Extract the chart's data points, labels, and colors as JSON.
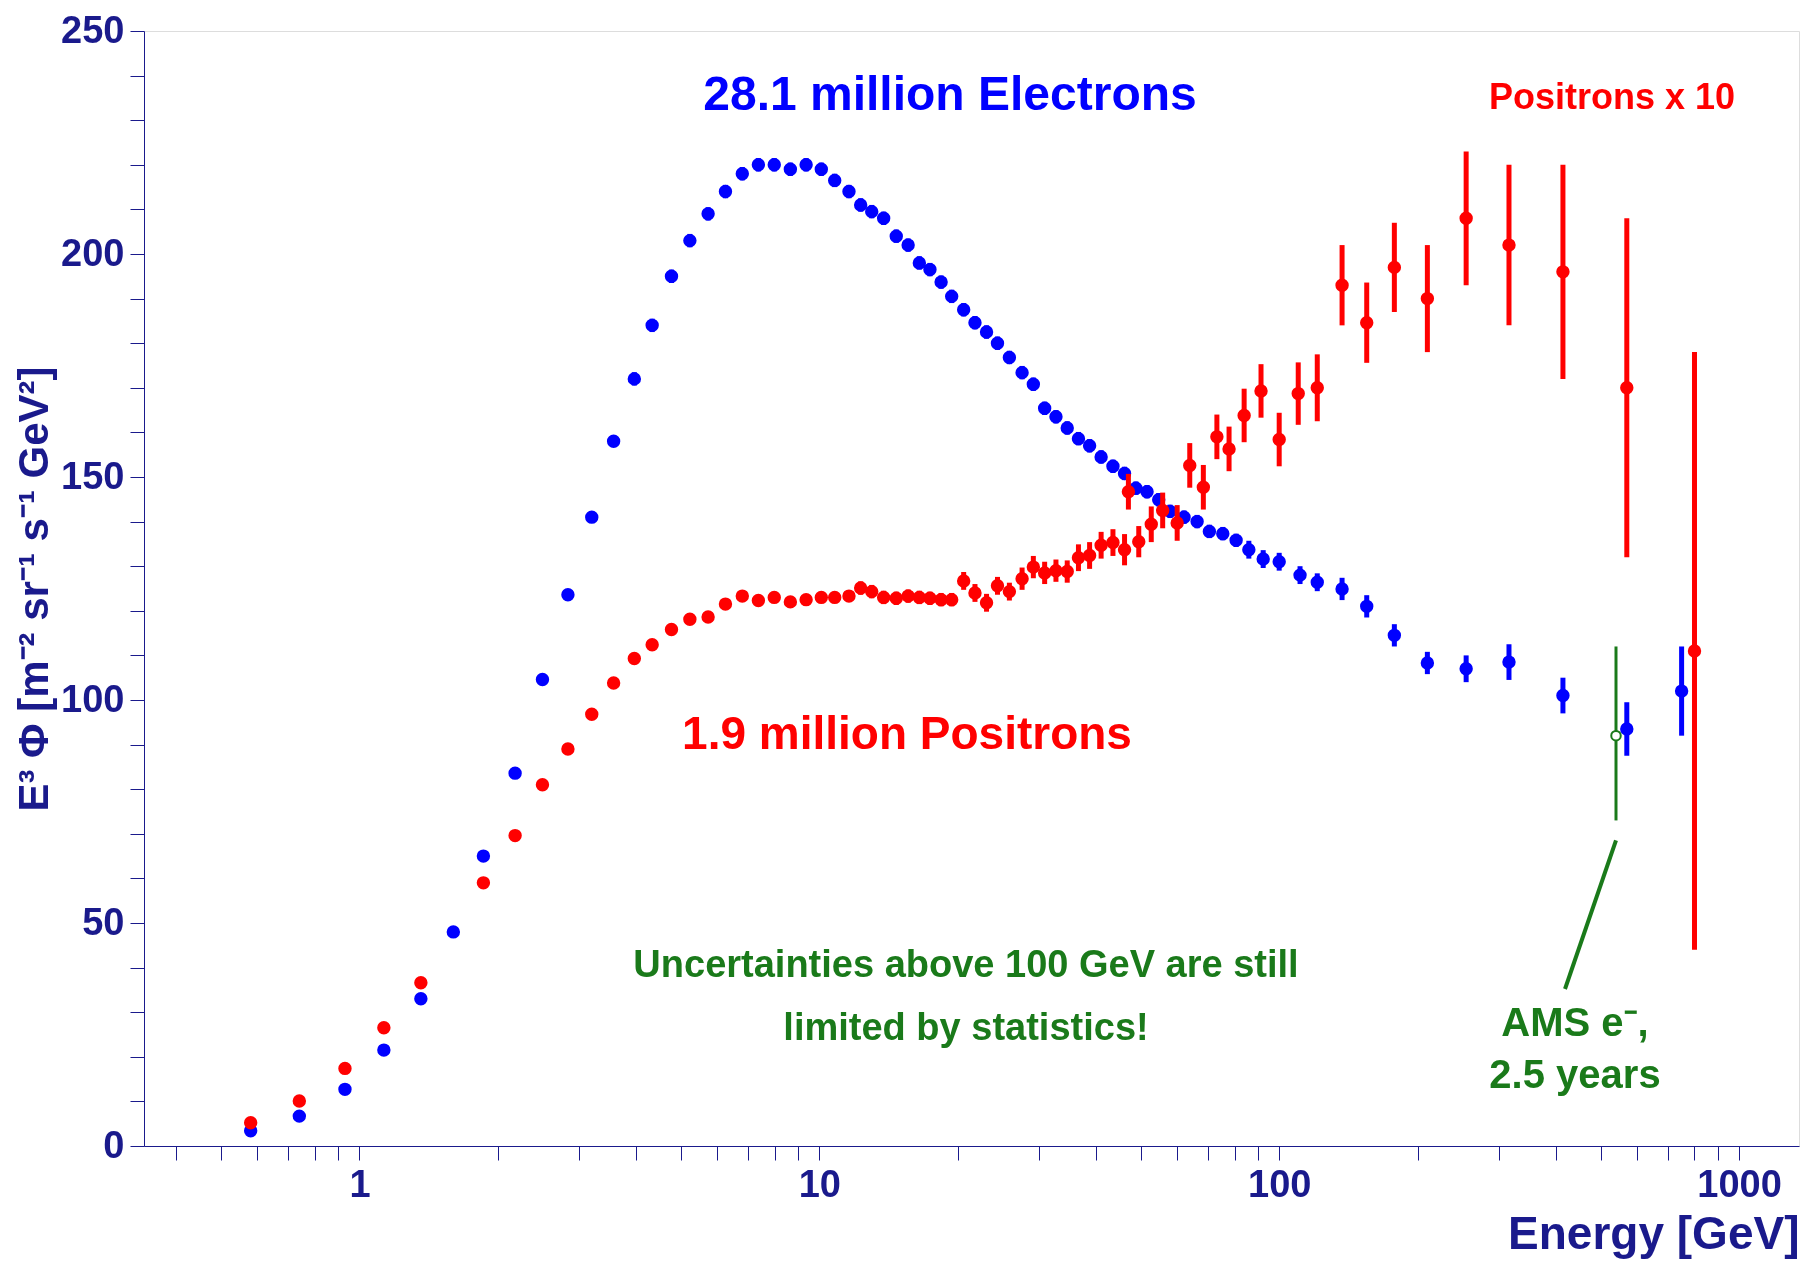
{
  "chart_data": {
    "type": "scatter",
    "xlabel": "Energy [GeV]",
    "ylabel": "E³ Φ [m⁻² sr⁻¹ s⁻¹ GeV²]",
    "log": "x",
    "xlim": [
      0.34,
      1350
    ],
    "ylim": [
      0,
      250
    ],
    "xticks": [
      {
        "value": 0.4,
        "label": null
      },
      {
        "value": 0.5,
        "label": null
      },
      {
        "value": 0.6,
        "label": null
      },
      {
        "value": 0.7,
        "label": null
      },
      {
        "value": 0.8,
        "label": null
      },
      {
        "value": 0.9,
        "label": null
      },
      1,
      {
        "value": 2,
        "label": null
      },
      {
        "value": 3,
        "label": null
      },
      {
        "value": 4,
        "label": null
      },
      {
        "value": 5,
        "label": null
      },
      {
        "value": 6,
        "label": null
      },
      {
        "value": 7,
        "label": null
      },
      {
        "value": 8,
        "label": null
      },
      {
        "value": 9,
        "label": null
      },
      10,
      {
        "value": 20,
        "label": null
      },
      {
        "value": 30,
        "label": null
      },
      {
        "value": 40,
        "label": null
      },
      {
        "value": 50,
        "label": null
      },
      {
        "value": 60,
        "label": null
      },
      {
        "value": 70,
        "label": null
      },
      {
        "value": 80,
        "label": null
      },
      {
        "value": 90,
        "label": null
      },
      100,
      {
        "value": 200,
        "label": null
      },
      {
        "value": 300,
        "label": null
      },
      {
        "value": 400,
        "label": null
      },
      {
        "value": 500,
        "label": null
      },
      {
        "value": 600,
        "label": null
      },
      {
        "value": 700,
        "label": null
      },
      {
        "value": 800,
        "label": null
      },
      {
        "value": 900,
        "label": null
      },
      1000
    ],
    "yticks": [
      0,
      {
        "value": 10,
        "label": null
      },
      {
        "value": 20,
        "label": null
      },
      {
        "value": 30,
        "label": null
      },
      {
        "value": 40,
        "label": null
      },
      50,
      {
        "value": 60,
        "label": null
      },
      {
        "value": 70,
        "label": null
      },
      {
        "value": 80,
        "label": null
      },
      {
        "value": 90,
        "label": null
      },
      100,
      {
        "value": 110,
        "label": null
      },
      {
        "value": 120,
        "label": null
      },
      {
        "value": 130,
        "label": null
      },
      {
        "value": 140,
        "label": null
      },
      150,
      {
        "value": 160,
        "label": null
      },
      {
        "value": 170,
        "label": null
      },
      {
        "value": 180,
        "label": null
      },
      {
        "value": 190,
        "label": null
      },
      200,
      {
        "value": 210,
        "label": null
      },
      {
        "value": 220,
        "label": null
      },
      {
        "value": 230,
        "label": null
      },
      {
        "value": 240,
        "label": null
      },
      250
    ],
    "grid": false,
    "marker": "circle",
    "series": [
      {
        "name": "28.1 million Electrons",
        "color": "#0000ff",
        "x": [
          0.58,
          0.74,
          0.93,
          1.13,
          1.36,
          1.6,
          1.86,
          2.18,
          2.5,
          2.84,
          3.2,
          3.57,
          3.96,
          4.33,
          4.77,
          5.23,
          5.73,
          6.25,
          6.8,
          7.37,
          7.98,
          8.65,
          9.36,
          10.1,
          10.8,
          11.6,
          12.3,
          13.0,
          13.8,
          14.7,
          15.6,
          16.5,
          17.4,
          18.4,
          19.4,
          20.6,
          21.8,
          23.1,
          24.4,
          25.9,
          27.6,
          29.2,
          30.9,
          32.7,
          34.6,
          36.6,
          38.7,
          41,
          43.5,
          46.1,
          48.8,
          51.6,
          54.7,
          57.9,
          62.1,
          66.3,
          70.5,
          75.4,
          80.6,
          85.9,
          92.3,
          100,
          111,
          121,
          137,
          155,
          178,
          210,
          255,
          316,
          414,
          570,
          750
        ],
        "values": [
          3.4,
          6.7,
          12.7,
          21.5,
          33,
          48,
          65,
          83.6,
          104.6,
          123.6,
          141,
          158,
          172,
          184,
          195,
          203,
          209,
          214,
          218,
          220,
          220,
          219,
          220,
          219,
          216.5,
          214,
          211,
          209.5,
          208,
          204,
          202,
          198,
          196.5,
          193.7,
          190.5,
          187.5,
          184.6,
          182.5,
          180,
          176.8,
          173.4,
          170.8,
          165.4,
          163.5,
          161,
          158.6,
          157,
          154.5,
          152.4,
          150.8,
          147.5,
          146.7,
          144.9,
          142.3,
          141,
          140,
          137.8,
          137.3,
          135.8,
          133.7,
          131.6,
          131,
          128,
          126.4,
          124.9,
          121,
          114.5,
          108.3,
          107,
          108.5,
          101,
          93.5,
          102
        ],
        "errors": [
          null,
          null,
          null,
          null,
          null,
          null,
          null,
          null,
          null,
          null,
          null,
          null,
          1.5,
          1.5,
          1.5,
          1.5,
          1.5,
          1.5,
          1.5,
          1.5,
          1.5,
          1.5,
          1.5,
          1.5,
          1.5,
          1.5,
          1.5,
          1.5,
          1.5,
          1.5,
          1.5,
          1.5,
          1.5,
          1.5,
          1.5,
          1.5,
          1.5,
          1.5,
          1.5,
          1.5,
          1.5,
          1.5,
          1.5,
          1.5,
          1.5,
          1.5,
          1.5,
          1.5,
          1.5,
          1.5,
          1.5,
          1.5,
          1.5,
          1.5,
          1.5,
          1.5,
          1.5,
          1.5,
          1.5,
          2,
          2,
          2,
          2,
          2,
          2.5,
          2.5,
          2.5,
          2.5,
          3,
          4,
          4,
          6,
          10
        ]
      },
      {
        "name": "1.9 million Positrons",
        "color": "#ff0000",
        "x": [
          0.58,
          0.74,
          0.93,
          1.13,
          1.36,
          1.86,
          2.18,
          2.5,
          2.84,
          3.2,
          3.57,
          3.96,
          4.33,
          4.77,
          5.23,
          5.73,
          6.25,
          6.8,
          7.37,
          7.98,
          8.65,
          9.36,
          10.1,
          10.8,
          11.6,
          12.3,
          13.0,
          13.8,
          14.7,
          15.6,
          16.5,
          17.4,
          18.4,
          19.4,
          20.6,
          21.8,
          23.1,
          24.4,
          25.9,
          27.6,
          29.2,
          30.9,
          32.7,
          34.6,
          36.6,
          38.7,
          41,
          43.5,
          46.1,
          47,
          49.5,
          52.7,
          55.8,
          60,
          63.9,
          68.4,
          73.2,
          77.8,
          83.9,
          91.3,
          100,
          110,
          121,
          137,
          155,
          178,
          210,
          255,
          316,
          414,
          570,
          800
        ],
        "values": [
          5.2,
          10.1,
          17.4,
          26.5,
          36.6,
          59,
          69.6,
          81,
          89,
          96.8,
          103.8,
          109.3,
          112.4,
          115.8,
          118.1,
          118.6,
          121.5,
          123.3,
          122.3,
          123,
          122,
          122.5,
          123,
          123,
          123.3,
          125.1,
          124.3,
          123,
          122.8,
          123.3,
          123,
          122.8,
          122.5,
          122.5,
          126.7,
          124,
          121.8,
          125.6,
          124.3,
          127.2,
          129.8,
          128.5,
          129,
          128.8,
          131.9,
          132.4,
          134.7,
          135.3,
          133.7,
          146.7,
          135.5,
          139.4,
          142.5,
          139.7,
          152.6,
          147.7,
          159,
          156.3,
          163.8,
          169.3,
          158.4,
          168.7,
          170,
          193,
          184.6,
          197,
          190,
          208,
          202,
          196,
          170,
          111
        ],
        "errors": [
          null,
          null,
          null,
          null,
          null,
          null,
          null,
          null,
          null,
          null,
          null,
          null,
          null,
          null,
          null,
          1,
          1,
          1,
          1,
          1,
          1,
          1,
          1,
          1,
          1,
          1.5,
          1.5,
          1.5,
          1.5,
          1.5,
          1.5,
          1.5,
          1.5,
          1.5,
          2,
          2,
          2,
          2,
          2,
          2.5,
          2.5,
          2.5,
          2.5,
          2.5,
          3,
          3,
          3,
          3,
          3.5,
          4,
          3.5,
          4,
          4,
          4,
          5,
          5,
          5,
          5,
          6,
          6,
          6,
          7,
          7.5,
          9,
          9,
          10,
          12,
          15,
          18,
          24,
          38,
          67
        ]
      },
      {
        "name": "AMS e⁻,\n2.5 years",
        "color": "#1a7a1a",
        "x": [
          540
        ],
        "values": [
          92
        ],
        "errors": [
          [
            73,
            112
          ]
        ]
      }
    ],
    "annotations": [
      "Positrons x 10",
      "Uncertainties above 100 GeV are still\nlimited by statistics!"
    ]
  }
}
